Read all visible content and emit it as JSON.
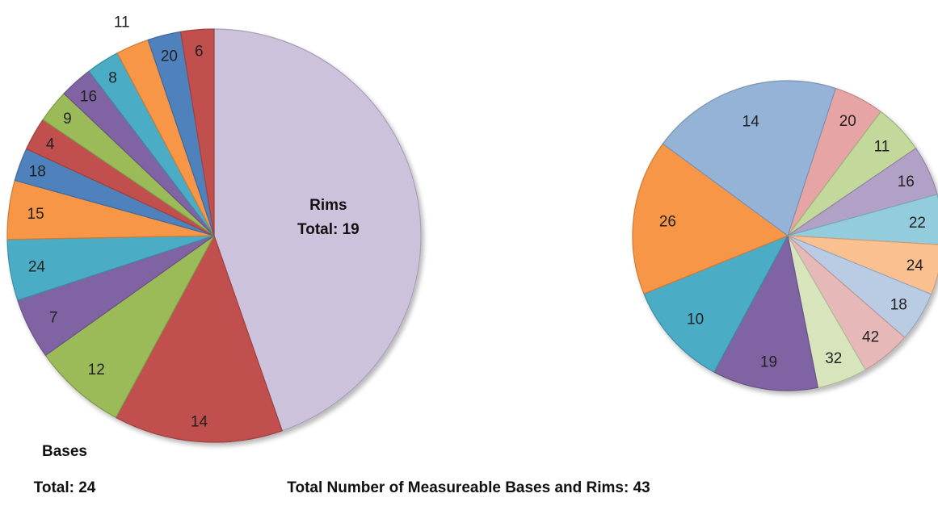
{
  "chart_data": [
    {
      "type": "pie",
      "title": "",
      "slices": [
        {
          "label": "Rims Total: 19",
          "label_lines": [
            "Rims",
            "Total: 19"
          ],
          "value": 19,
          "color": "#cdc2dc"
        },
        {
          "label": "14",
          "value": 5.62,
          "color": "#c0504d"
        },
        {
          "label": "12",
          "value": 3.1,
          "color": "#9bbb59"
        },
        {
          "label": "7",
          "value": 2.03,
          "color": "#8064a2"
        },
        {
          "label": "24",
          "value": 2.03,
          "color": "#4bacc6"
        },
        {
          "label": "15",
          "value": 1.96,
          "color": "#f79646"
        },
        {
          "label": "18",
          "value": 1.1,
          "color": "#4f81bd"
        },
        {
          "label": "4",
          "value": 1.1,
          "color": "#c0504d"
        },
        {
          "label": "9",
          "value": 1.1,
          "color": "#9bbb59"
        },
        {
          "label": "16",
          "value": 1.1,
          "color": "#8064a2"
        },
        {
          "label": "8",
          "value": 1.1,
          "color": "#4bacc6"
        },
        {
          "label": "11",
          "value": 1.1,
          "color": "#f79646"
        },
        {
          "label": "20",
          "value": 1.1,
          "color": "#4f81bd"
        },
        {
          "label": "6",
          "value": 1.1,
          "color": "#c0504d"
        }
      ]
    },
    {
      "type": "pie",
      "title": "",
      "slices": [
        {
          "label": "20",
          "value": 5,
          "color": "#e6a5a4"
        },
        {
          "label": "11",
          "value": 5,
          "color": "#c3d89b"
        },
        {
          "label": "16",
          "value": 5,
          "color": "#b2a1c7"
        },
        {
          "label": "22",
          "value": 5,
          "color": "#93cddd"
        },
        {
          "label": "24",
          "value": 5,
          "color": "#fac090"
        },
        {
          "label": "18",
          "value": 5,
          "color": "#b9cce4"
        },
        {
          "label": "42",
          "value": 5,
          "color": "#e6b9b8"
        },
        {
          "label": "32",
          "value": 5,
          "color": "#d7e4bc"
        },
        {
          "label": "19",
          "value": 10.5,
          "color": "#8064a2"
        },
        {
          "label": "10",
          "value": 10.5,
          "color": "#4bacc6"
        },
        {
          "label": "26",
          "value": 15.5,
          "color": "#f79646"
        },
        {
          "label": "14",
          "value": 19,
          "color": "#95b3d7"
        }
      ]
    }
  ],
  "annotations": {
    "bases_line1": "Bases",
    "bases_line2": "Total: 24",
    "total": "Total Number of Measureable Bases and Rims: 43"
  }
}
